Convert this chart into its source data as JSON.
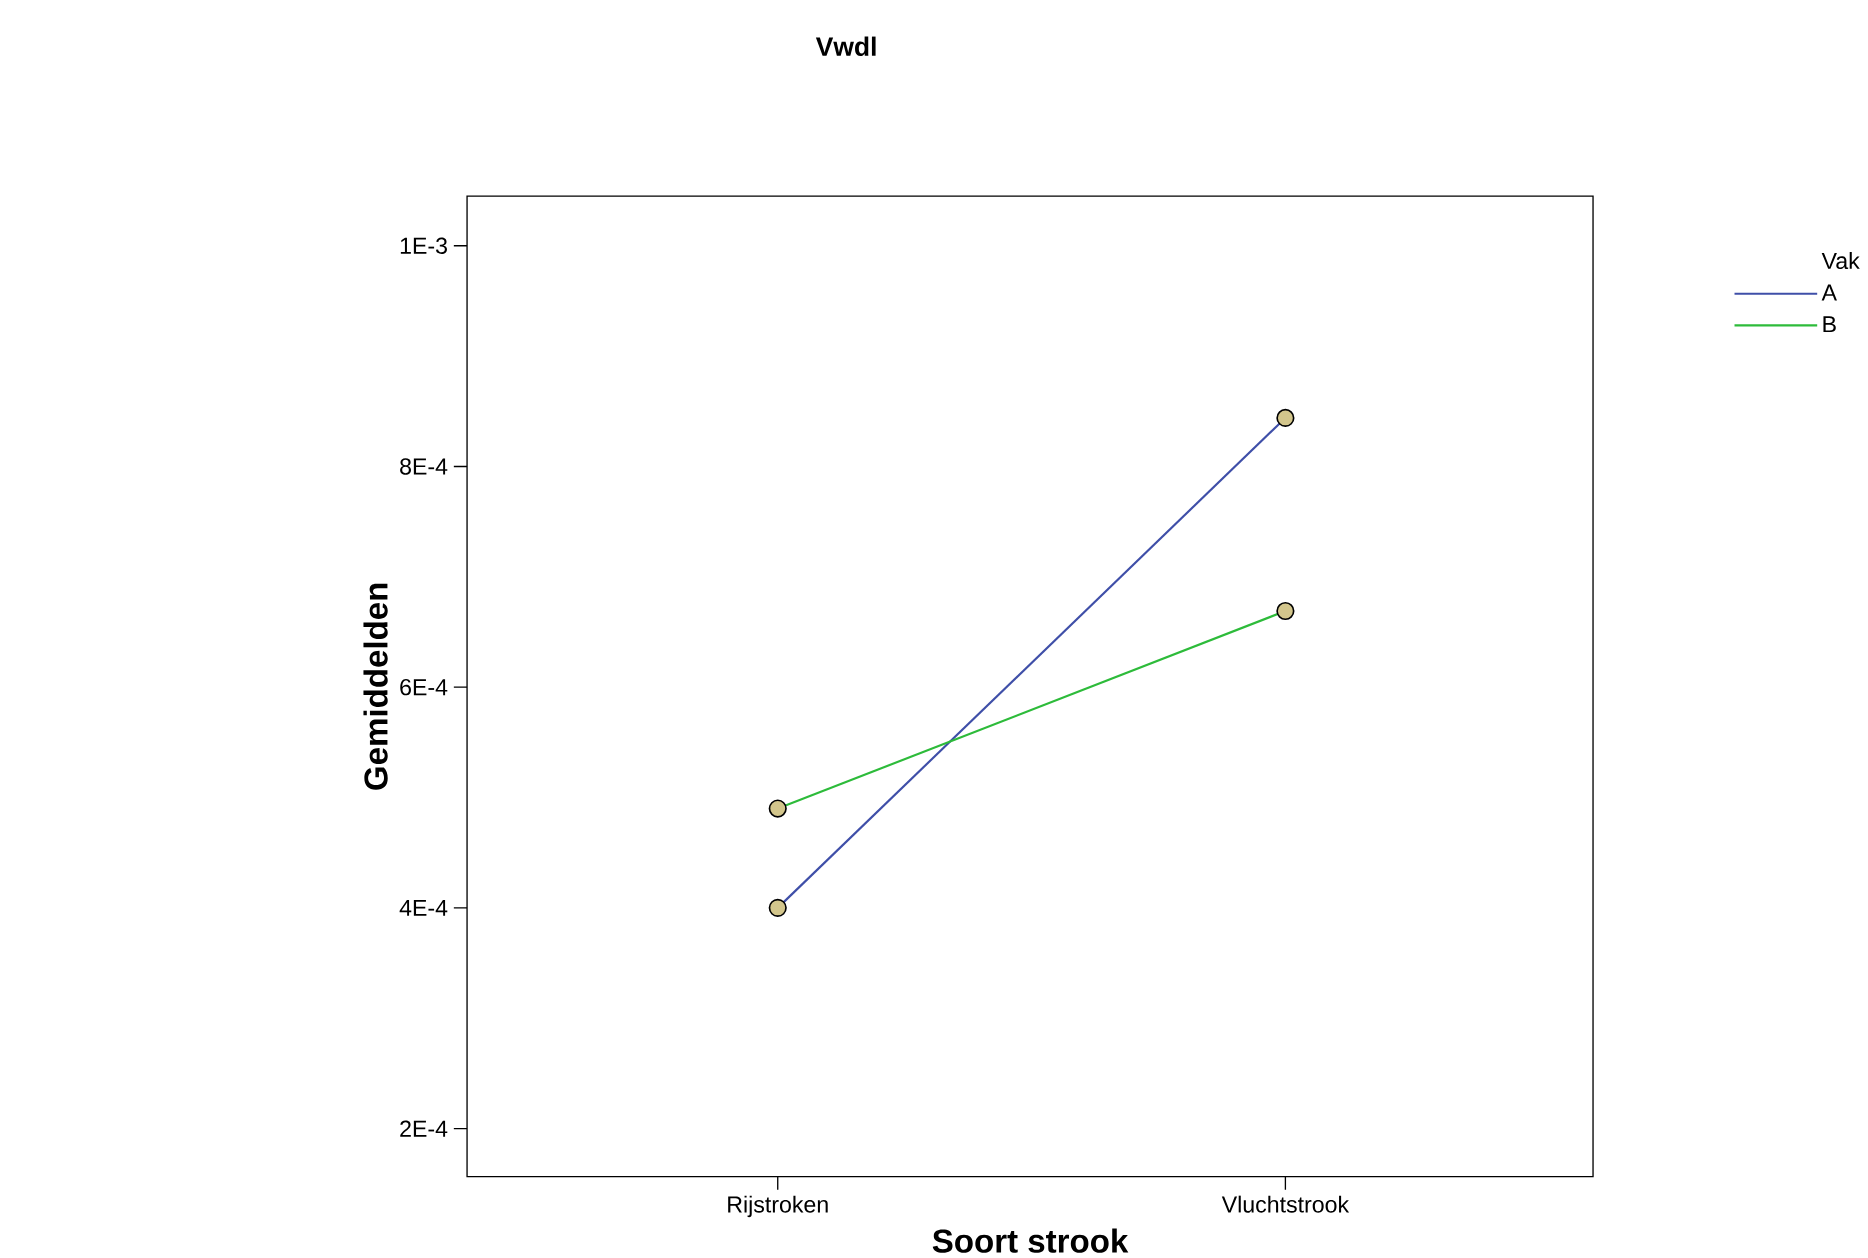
{
  "chart_data": {
    "type": "line",
    "title": "Vwdl",
    "xlabel": "Soort strook",
    "ylabel": "Gemiddelden",
    "legend_title": "Vak",
    "categories": [
      "Rijstroken",
      "Vluchtstrook"
    ],
    "series": [
      {
        "name": "A",
        "color": "#3f4fa8",
        "values": [
          0.0004,
          0.000844
        ]
      },
      {
        "name": "B",
        "color": "#2dbb3a",
        "values": [
          0.00049,
          0.000669
        ]
      }
    ],
    "ylim": [
      0.0001565,
      0.001045
    ],
    "yticks": [
      {
        "value": 0.0002,
        "label": "2E-4"
      },
      {
        "value": 0.0004,
        "label": "4E-4"
      },
      {
        "value": 0.0006,
        "label": "6E-4"
      },
      {
        "value": 0.0008,
        "label": "8E-4"
      },
      {
        "value": 0.001,
        "label": "1E-3"
      }
    ],
    "marker": "circle",
    "legend": "top right",
    "grid": false
  }
}
